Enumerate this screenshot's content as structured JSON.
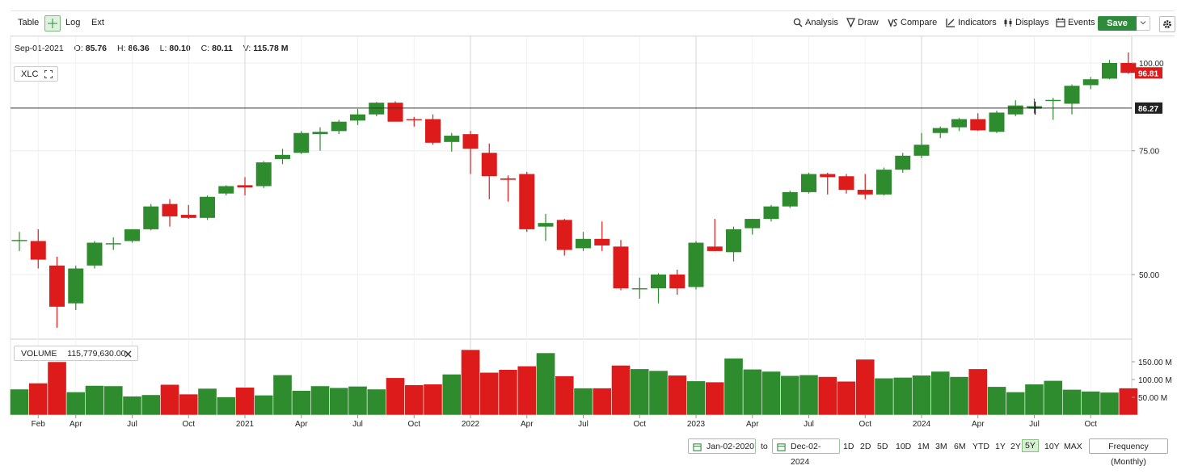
{
  "toolbar": {
    "table": "Table",
    "log": "Log",
    "ext": "Ext",
    "analysis": "Analysis",
    "draw": "Draw",
    "compare": "Compare",
    "indicators": "Indicators",
    "displays": "Displays",
    "events": "Events",
    "save": "Save"
  },
  "ohlc": {
    "date": "Sep-01-2021",
    "o_label": "O:",
    "o": "85.76",
    "h_label": "H:",
    "h": "86.36",
    "l_label": "L:",
    "l": "80.10",
    "c_label": "C:",
    "c": "80.11",
    "v_label": "V:",
    "v": "115.78 M"
  },
  "symbol": "XLC",
  "volume_label": "VOLUME",
  "volume_value": "115,779,630.00",
  "range": {
    "from": "Jan-02-2020",
    "to_label": "to",
    "to": "Dec-02-2024",
    "buttons": [
      "1D",
      "2D",
      "5D",
      "10D",
      "1M",
      "3M",
      "6M",
      "YTD",
      "1Y",
      "2Y",
      "5Y",
      "10Y",
      "MAX"
    ],
    "selected": "5Y",
    "frequency": "Frequency (Monthly)"
  },
  "colors": {
    "up": "#2e8b2e",
    "down": "#dd1b1b",
    "accent": "#2e8b3c"
  },
  "chart_data": {
    "type": "candlestick",
    "symbol": "XLC",
    "frequency": "monthly",
    "x_tick_labels": [
      "Feb",
      "Apr",
      "Jul",
      "Oct",
      "2021",
      "Apr",
      "Jul",
      "Oct",
      "2022",
      "Apr",
      "Jul",
      "Oct",
      "2023",
      "Apr",
      "Jul",
      "Oct",
      "2024",
      "Apr",
      "Jul",
      "Oct"
    ],
    "y_ticks": [
      "100.00",
      "75.00",
      "50.00"
    ],
    "y_log_scale": true,
    "ylim": [
      40,
      105
    ],
    "volume_ticks": [
      "150.00 M",
      "100.00 M",
      "50.00 M"
    ],
    "volume_ylim": [
      0,
      190
    ],
    "last_price_label": "96.81",
    "crosshair_price_label": "86.27",
    "crosshair_price": 86.27,
    "grid": true,
    "candles": [
      {
        "o": 56.0,
        "h": 57.5,
        "l": 54.0,
        "c": 56.0,
        "v": 73
      },
      {
        "o": 55.8,
        "h": 58.0,
        "l": 51.0,
        "c": 52.5,
        "v": 90
      },
      {
        "o": 51.5,
        "h": 53.0,
        "l": 42.0,
        "c": 45.0,
        "v": 150
      },
      {
        "o": 45.5,
        "h": 51.5,
        "l": 44.5,
        "c": 51.0,
        "v": 65
      },
      {
        "o": 51.5,
        "h": 55.8,
        "l": 51.0,
        "c": 55.5,
        "v": 83
      },
      {
        "o": 55.2,
        "h": 56.5,
        "l": 54.2,
        "c": 55.4,
        "v": 82
      },
      {
        "o": 55.8,
        "h": 58.0,
        "l": 55.5,
        "c": 58.0,
        "v": 53
      },
      {
        "o": 58.0,
        "h": 63.0,
        "l": 57.8,
        "c": 62.5,
        "v": 57
      },
      {
        "o": 63.0,
        "h": 64.0,
        "l": 58.5,
        "c": 60.5,
        "v": 86
      },
      {
        "o": 60.8,
        "h": 62.8,
        "l": 60.0,
        "c": 60.2,
        "v": 59
      },
      {
        "o": 60.2,
        "h": 64.8,
        "l": 59.8,
        "c": 64.5,
        "v": 75
      },
      {
        "o": 65.2,
        "h": 67.0,
        "l": 64.8,
        "c": 66.8,
        "v": 51
      },
      {
        "o": 67.0,
        "h": 68.8,
        "l": 64.8,
        "c": 66.5,
        "v": 78
      },
      {
        "o": 66.8,
        "h": 72.5,
        "l": 66.4,
        "c": 72.2,
        "v": 56
      },
      {
        "o": 73.0,
        "h": 75.5,
        "l": 71.8,
        "c": 74.0,
        "v": 113
      },
      {
        "o": 74.5,
        "h": 80.0,
        "l": 74.2,
        "c": 79.5,
        "v": 69
      },
      {
        "o": 79.2,
        "h": 81.0,
        "l": 75.0,
        "c": 79.8,
        "v": 82
      },
      {
        "o": 80.0,
        "h": 83.0,
        "l": 79.2,
        "c": 82.5,
        "v": 77
      },
      {
        "o": 82.8,
        "h": 86.0,
        "l": 81.6,
        "c": 84.5,
        "v": 81
      },
      {
        "o": 84.5,
        "h": 88.0,
        "l": 84.0,
        "c": 87.8,
        "v": 73
      },
      {
        "o": 87.8,
        "h": 88.2,
        "l": 82.8,
        "c": 82.5,
        "v": 105
      },
      {
        "o": 83.2,
        "h": 83.8,
        "l": 81.2,
        "c": 83.0,
        "v": 85
      },
      {
        "o": 83.2,
        "h": 84.5,
        "l": 76.5,
        "c": 77.0,
        "v": 87
      },
      {
        "o": 77.2,
        "h": 79.5,
        "l": 74.8,
        "c": 78.8,
        "v": 115
      },
      {
        "o": 79.2,
        "h": 80.0,
        "l": 69.5,
        "c": 75.5,
        "v": 184
      },
      {
        "o": 74.5,
        "h": 76.8,
        "l": 64.0,
        "c": 69.0,
        "v": 120
      },
      {
        "o": 68.5,
        "h": 69.2,
        "l": 63.5,
        "c": 68.2,
        "v": 128
      },
      {
        "o": 69.5,
        "h": 70.0,
        "l": 57.5,
        "c": 58.0,
        "v": 138
      },
      {
        "o": 58.5,
        "h": 61.0,
        "l": 55.8,
        "c": 59.2,
        "v": 175
      },
      {
        "o": 59.8,
        "h": 60.0,
        "l": 53.2,
        "c": 54.2,
        "v": 110
      },
      {
        "o": 54.5,
        "h": 57.5,
        "l": 54.0,
        "c": 56.2,
        "v": 76
      },
      {
        "o": 56.2,
        "h": 59.5,
        "l": 54.0,
        "c": 55.0,
        "v": 76
      },
      {
        "o": 54.8,
        "h": 56.0,
        "l": 47.5,
        "c": 47.8,
        "v": 140
      },
      {
        "o": 47.8,
        "h": 49.5,
        "l": 46.2,
        "c": 47.8,
        "v": 130
      },
      {
        "o": 47.8,
        "h": 50.2,
        "l": 45.5,
        "c": 50.0,
        "v": 125
      },
      {
        "o": 50.0,
        "h": 50.8,
        "l": 46.8,
        "c": 47.8,
        "v": 112
      },
      {
        "o": 48.0,
        "h": 55.8,
        "l": 47.6,
        "c": 55.5,
        "v": 96
      },
      {
        "o": 54.8,
        "h": 60.0,
        "l": 54.2,
        "c": 54.0,
        "v": 93
      },
      {
        "o": 53.8,
        "h": 58.5,
        "l": 52.2,
        "c": 58.0,
        "v": 160
      },
      {
        "o": 58.2,
        "h": 60.0,
        "l": 57.0,
        "c": 60.0,
        "v": 129
      },
      {
        "o": 60.0,
        "h": 62.8,
        "l": 59.5,
        "c": 62.5,
        "v": 123
      },
      {
        "o": 62.5,
        "h": 65.8,
        "l": 62.2,
        "c": 65.5,
        "v": 111
      },
      {
        "o": 65.5,
        "h": 69.8,
        "l": 65.2,
        "c": 69.5,
        "v": 113
      },
      {
        "o": 69.5,
        "h": 69.8,
        "l": 65.0,
        "c": 68.8,
        "v": 108
      },
      {
        "o": 69.0,
        "h": 69.5,
        "l": 65.2,
        "c": 66.0,
        "v": 95
      },
      {
        "o": 66.0,
        "h": 69.5,
        "l": 64.0,
        "c": 65.0,
        "v": 157
      },
      {
        "o": 65.0,
        "h": 71.0,
        "l": 64.8,
        "c": 70.5,
        "v": 104
      },
      {
        "o": 70.5,
        "h": 74.5,
        "l": 69.8,
        "c": 73.8,
        "v": 106
      },
      {
        "o": 73.8,
        "h": 79.5,
        "l": 73.2,
        "c": 76.5,
        "v": 112
      },
      {
        "o": 79.5,
        "h": 81.2,
        "l": 78.2,
        "c": 80.8,
        "v": 123
      },
      {
        "o": 81.0,
        "h": 83.5,
        "l": 80.0,
        "c": 83.2,
        "v": 108
      },
      {
        "o": 83.2,
        "h": 84.8,
        "l": 80.0,
        "c": 80.2,
        "v": 130
      },
      {
        "o": 79.8,
        "h": 85.5,
        "l": 79.5,
        "c": 85.0,
        "v": 80
      },
      {
        "o": 84.5,
        "h": 88.5,
        "l": 84.0,
        "c": 87.0,
        "v": 65
      },
      {
        "o": 86.3,
        "h": 89.0,
        "l": 84.8,
        "c": 86.8,
        "v": 87
      },
      {
        "o": 88.6,
        "h": 89.2,
        "l": 83.0,
        "c": 88.6,
        "v": 97
      },
      {
        "o": 87.5,
        "h": 93.2,
        "l": 84.5,
        "c": 92.8,
        "v": 72
      },
      {
        "o": 93.0,
        "h": 95.5,
        "l": 91.8,
        "c": 94.8,
        "v": 67
      },
      {
        "o": 95.0,
        "h": 101.0,
        "l": 94.8,
        "c": 100.0,
        "v": 64
      },
      {
        "o": 100.0,
        "h": 103.5,
        "l": 96.5,
        "c": 96.81,
        "v": 76
      }
    ]
  }
}
